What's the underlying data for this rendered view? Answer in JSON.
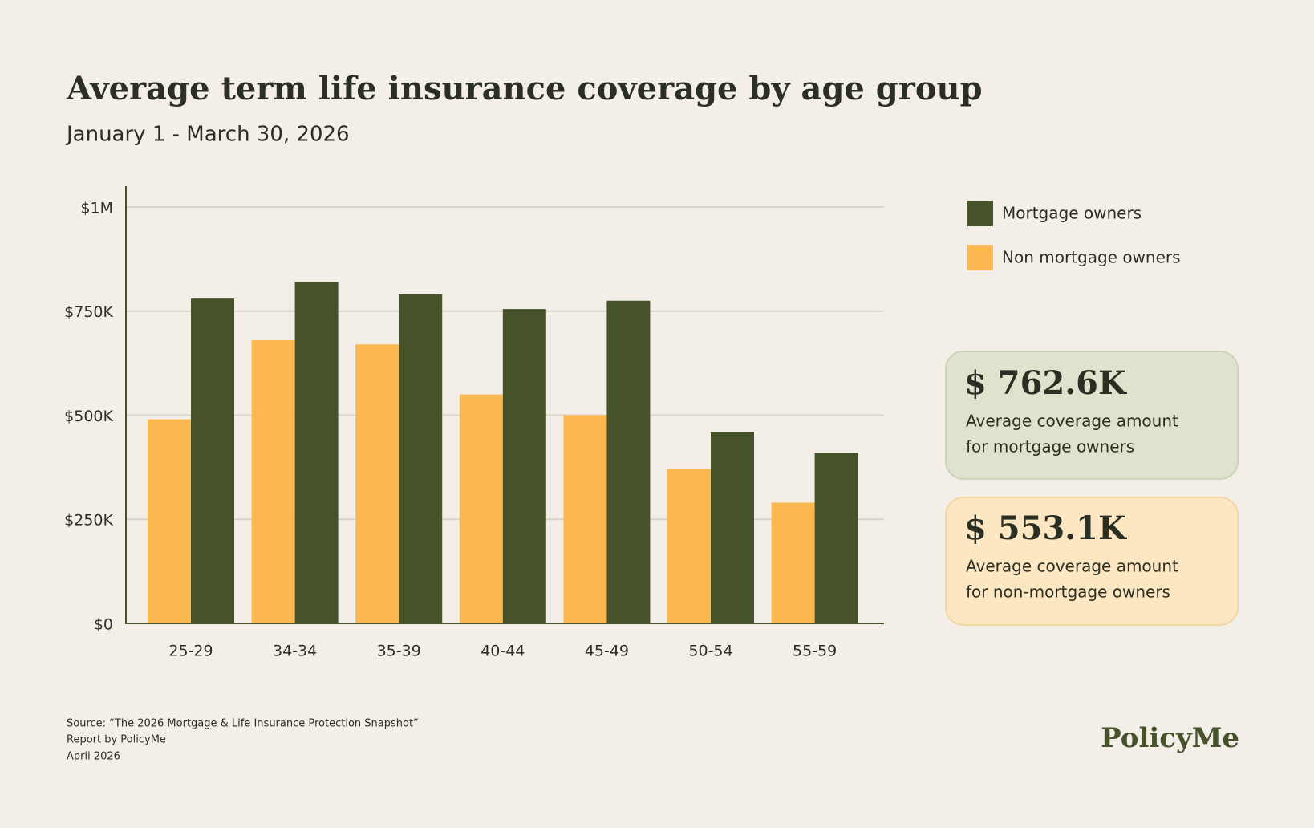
{
  "chart_data": {
    "type": "bar",
    "title": "Average term life insurance coverage by age group",
    "subtitle": "January 1 - March 30, 2026",
    "categories": [
      "25-29",
      "34-34",
      "35-39",
      "40-44",
      "45-49",
      "50-54",
      "55-59"
    ],
    "series": [
      {
        "name": "Non mortgage owners",
        "color": "#fbb851",
        "values": [
          490000,
          680000,
          670000,
          550000,
          500000,
          372000,
          290000
        ]
      },
      {
        "name": "Mortgage owners",
        "color": "#45522a",
        "values": [
          780000,
          820000,
          790000,
          755000,
          775000,
          460000,
          410000
        ]
      }
    ],
    "ylim": [
      0,
      1050000
    ],
    "yticks": [
      {
        "value": 0,
        "label": "$0"
      },
      {
        "value": 250000,
        "label": "$250K"
      },
      {
        "value": 500000,
        "label": "$500K"
      },
      {
        "value": 750000,
        "label": "$750K"
      },
      {
        "value": 1000000,
        "label": "$1M"
      }
    ],
    "grid": true,
    "legend": "right"
  },
  "callouts": [
    {
      "value": "$ 762.6K",
      "text": [
        "Average coverage amount",
        "for mortgage owners"
      ]
    },
    {
      "value": "$ 553.1K",
      "text": [
        "Average coverage amount",
        "for non-mortgage owners"
      ]
    }
  ],
  "source": [
    "Source: “The 2026 Mortgage & Life Insurance Protection Snapshot”",
    "Report by PolicyMe",
    "April 2026"
  ],
  "logo": "PolicyMe"
}
